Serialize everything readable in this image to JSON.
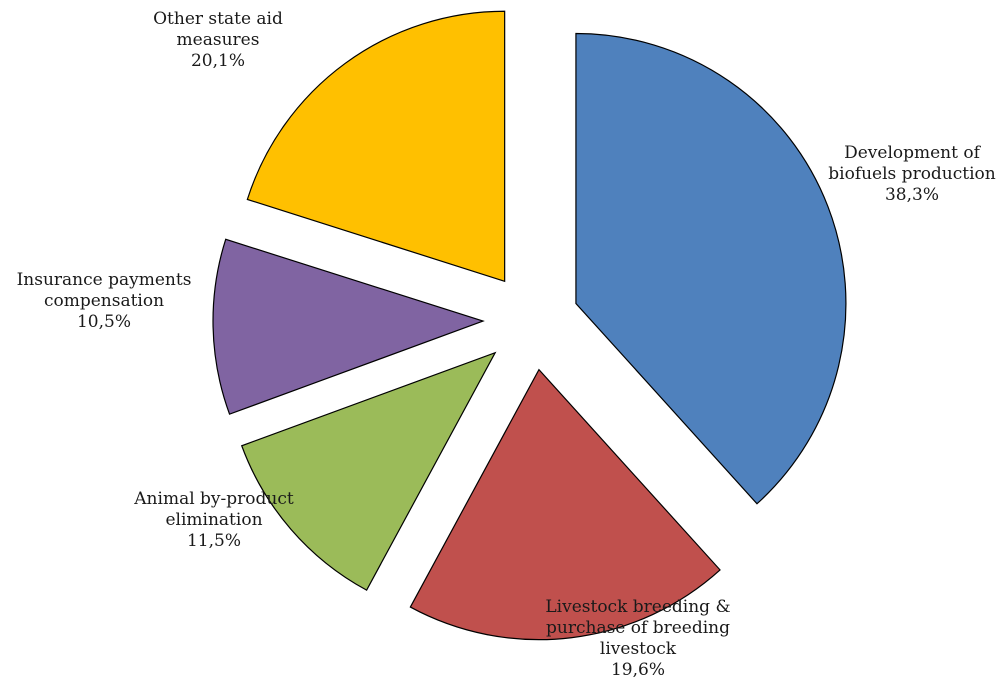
{
  "chart_data": {
    "type": "pie",
    "title": "",
    "slices": [
      {
        "label_lines": [
          "Development of",
          "biofuels production"
        ],
        "percent_label": "38,3%",
        "value": 38.3,
        "color": "#4f81bd"
      },
      {
        "label_lines": [
          "Livestock breeding &",
          "purchase of breeding",
          "livestock"
        ],
        "percent_label": "19,6%",
        "value": 19.6,
        "color": "#c0504d"
      },
      {
        "label_lines": [
          "Animal by-product",
          "elimination"
        ],
        "percent_label": "11,5%",
        "value": 11.5,
        "color": "#9bbb59"
      },
      {
        "label_lines": [
          "Insurance payments",
          "compensation"
        ],
        "percent_label": "10,5%",
        "value": 10.5,
        "color": "#8064a2"
      },
      {
        "label_lines": [
          "Other state aid",
          "measures"
        ],
        "percent_label": "20,1%",
        "value": 20.1,
        "color": "#ffc000"
      }
    ],
    "legend": "none",
    "label_format": "category name and percentage"
  }
}
